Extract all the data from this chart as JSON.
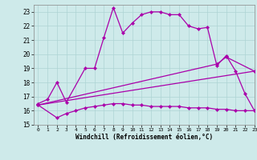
{
  "xlabel": "Windchill (Refroidissement éolien,°C)",
  "xlim": [
    -0.5,
    23
  ],
  "ylim": [
    15,
    23.5
  ],
  "xticks": [
    0,
    1,
    2,
    3,
    4,
    5,
    6,
    7,
    8,
    9,
    10,
    11,
    12,
    13,
    14,
    15,
    16,
    17,
    18,
    19,
    20,
    21,
    22,
    23
  ],
  "yticks": [
    15,
    16,
    17,
    18,
    19,
    20,
    21,
    22,
    23
  ],
  "bg_color": "#ceeaea",
  "grid_color": "#aed4d4",
  "line_color": "#aa00aa",
  "curve1_x": [
    0,
    1,
    2,
    3,
    5,
    6,
    7,
    8,
    9,
    10,
    11,
    12,
    13,
    14,
    15,
    16,
    17,
    18,
    19,
    20,
    21,
    22,
    23
  ],
  "curve1_y": [
    16.5,
    16.8,
    18.0,
    16.6,
    19.0,
    19.0,
    21.2,
    23.3,
    21.5,
    22.2,
    22.8,
    23.0,
    23.0,
    22.8,
    22.8,
    22.0,
    21.8,
    21.9,
    19.2,
    19.9,
    18.8,
    17.2,
    16.0
  ],
  "curve2_x": [
    0,
    2,
    3,
    4,
    5,
    6,
    7,
    8,
    9,
    10,
    11,
    12,
    13,
    14,
    15,
    16,
    17,
    18,
    19,
    20,
    21,
    22,
    23
  ],
  "curve2_y": [
    16.4,
    15.5,
    15.8,
    16.0,
    16.2,
    16.3,
    16.4,
    16.5,
    16.5,
    16.4,
    16.4,
    16.3,
    16.3,
    16.3,
    16.3,
    16.2,
    16.2,
    16.2,
    16.1,
    16.1,
    16.0,
    16.0,
    16.0
  ],
  "curve3_x": [
    0,
    19,
    20,
    23
  ],
  "curve3_y": [
    16.4,
    19.3,
    19.8,
    18.8
  ],
  "curve4_x": [
    0,
    23
  ],
  "curve4_y": [
    16.4,
    18.8
  ],
  "curve5_x": [
    0,
    23
  ],
  "curve5_y": [
    16.4,
    16.4
  ],
  "linewidth": 0.9,
  "markersize": 2.2
}
